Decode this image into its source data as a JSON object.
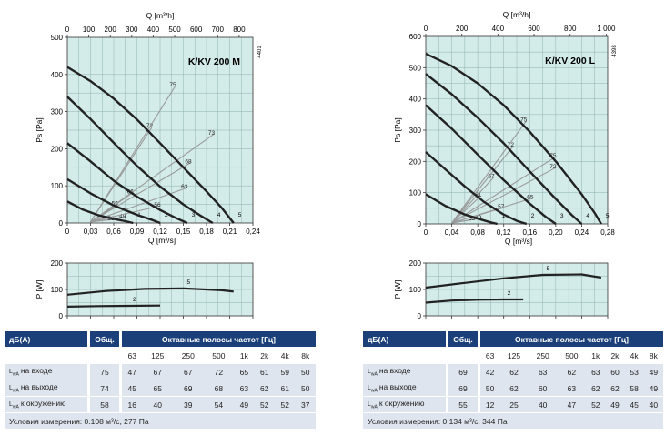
{
  "panels": [
    {
      "model": "K/KV 200 M",
      "code": "4401",
      "chart_data": {
        "type": "line",
        "top_axis_label": "Q [m³/h]",
        "top_axis_ticks": [
          "0",
          "100",
          "200",
          "300",
          "400",
          "500",
          "600",
          "700",
          "800"
        ],
        "top_axis_max": 864,
        "xlabel": "Q [m³/s]",
        "xlim": [
          0,
          0.24
        ],
        "xticks": [
          "0",
          "0,03",
          "0,06",
          "0,09",
          "0,12",
          "0,15",
          "0,18",
          "0,21",
          "0,24"
        ],
        "ylabel": "Ps [Pa]",
        "ylim": [
          0,
          500
        ],
        "yticks": [
          "0",
          "100",
          "200",
          "300",
          "400",
          "500"
        ],
        "grid": true,
        "background": "#d3ebe9",
        "series": [
          {
            "name": "1",
            "x": [
              0,
              0.02,
              0.04,
              0.06,
              0.075,
              0.085
            ],
            "y": [
              58,
              36,
              21,
              11,
              5,
              0
            ]
          },
          {
            "name": "2",
            "x": [
              0,
              0.03,
              0.06,
              0.09,
              0.11,
              0.12
            ],
            "y": [
              118,
              80,
              47,
              22,
              8,
              0
            ]
          },
          {
            "name": "3",
            "x": [
              0,
              0.03,
              0.06,
              0.09,
              0.12,
              0.14,
              0.155
            ],
            "y": [
              215,
              166,
              114,
              71,
              35,
              14,
              0
            ]
          },
          {
            "name": "4",
            "x": [
              0,
              0.03,
              0.06,
              0.09,
              0.12,
              0.15,
              0.172,
              0.188
            ],
            "y": [
              340,
              280,
              216,
              154,
              98,
              50,
              20,
              0
            ]
          },
          {
            "name": "5",
            "x": [
              0,
              0.03,
              0.06,
              0.09,
              0.12,
              0.15,
              0.18,
              0.2,
              0.215
            ],
            "y": [
              420,
              382,
              335,
              279,
              215,
              150,
              85,
              40,
              0
            ]
          }
        ],
        "efficiency_lines": [
          {
            "label": "49",
            "x": [
              0.03,
              0.075
            ],
            "y": [
              3,
              16
            ]
          },
          {
            "label": "53",
            "x": [
              0.03,
              0.06
            ],
            "y": [
              3,
              10
            ]
          },
          {
            "label": "56",
            "x": [
              0.03,
              0.12
            ],
            "y": [
              3,
              46
            ]
          },
          {
            "label": "59",
            "x": [
              0.03,
              0.065
            ],
            "y": [
              3,
              50
            ]
          },
          {
            "label": "63",
            "x": [
              0.03,
              0.155
            ],
            "y": [
              3,
              95
            ]
          },
          {
            "label": "66",
            "x": [
              0.03,
              0.085
            ],
            "y": [
              3,
              82
            ]
          },
          {
            "label": "68",
            "x": [
              0.03,
              0.16
            ],
            "y": [
              3,
              163
            ]
          },
          {
            "label": "72",
            "x": [
              0.03,
              0.11
            ],
            "y": [
              3,
              260
            ]
          },
          {
            "label": "73",
            "x": [
              0.03,
              0.19
            ],
            "y": [
              3,
              240
            ]
          },
          {
            "label": "75",
            "x": [
              0.03,
              0.14
            ],
            "y": [
              3,
              370
            ]
          }
        ]
      },
      "power_chart": {
        "type": "line",
        "ylabel": "P [W]",
        "ylim": [
          0,
          200
        ],
        "yticks": [
          "0",
          "100",
          "200"
        ],
        "xlim": [
          0,
          0.24
        ],
        "series": [
          {
            "name": "2",
            "x": [
              0,
              0.04,
              0.08,
              0.12
            ],
            "y": [
              35,
              37,
              38,
              39
            ]
          },
          {
            "name": "5",
            "x": [
              0,
              0.05,
              0.1,
              0.15,
              0.2,
              0.215
            ],
            "y": [
              80,
              94,
              102,
              104,
              97,
              92
            ]
          }
        ]
      },
      "table": {
        "title": "дБ(A)",
        "total": "Общ.",
        "bands_title": "Октавные полосы частот [Гц]",
        "bands": [
          "63",
          "125",
          "250",
          "500",
          "1k",
          "2k",
          "4k",
          "8k"
        ],
        "rows": [
          {
            "label": "на входе",
            "total": "75",
            "values": [
              "47",
              "67",
              "67",
              "72",
              "65",
              "61",
              "59",
              "50"
            ]
          },
          {
            "label": "на выходе",
            "total": "74",
            "values": [
              "45",
              "65",
              "69",
              "68",
              "63",
              "62",
              "61",
              "50"
            ]
          },
          {
            "label": "к окружению",
            "total": "58",
            "values": [
              "16",
              "40",
              "39",
              "54",
              "49",
              "52",
              "52",
              "37"
            ]
          }
        ],
        "conditions": "Условия измерения: 0.108 м³/с, 277 Па"
      }
    },
    {
      "model": "K/KV 200 L",
      "code": "4398",
      "chart_data": {
        "type": "line",
        "top_axis_label": "Q [m³/h]",
        "top_axis_ticks": [
          "0",
          "200",
          "400",
          "600",
          "800",
          "1 000"
        ],
        "top_axis_max": 1008,
        "xlabel": "Q [m³/s]",
        "xlim": [
          0,
          0.28
        ],
        "xticks": [
          "0",
          "0,04",
          "0,08",
          "0,12",
          "0,16",
          "0,20",
          "0,24",
          "0,28"
        ],
        "ylabel": "Ps [Pa]",
        "ylim": [
          0,
          600
        ],
        "yticks": [
          "0",
          "100",
          "200",
          "300",
          "400",
          "500",
          "600"
        ],
        "grid": true,
        "background": "#d3ebe9",
        "series": [
          {
            "name": "1",
            "x": [
              0,
              0.03,
              0.06,
              0.085,
              0.1,
              0.11
            ],
            "y": [
              95,
              58,
              30,
              14,
              5,
              0
            ]
          },
          {
            "name": "2",
            "x": [
              0,
              0.03,
              0.06,
              0.09,
              0.12,
              0.14,
              0.155
            ],
            "y": [
              230,
              175,
              120,
              70,
              30,
              10,
              0
            ]
          },
          {
            "name": "3",
            "x": [
              0,
              0.04,
              0.08,
              0.12,
              0.16,
              0.185,
              0.2
            ],
            "y": [
              380,
              305,
              222,
              140,
              65,
              22,
              0
            ]
          },
          {
            "name": "4",
            "x": [
              0,
              0.04,
              0.08,
              0.12,
              0.16,
              0.2,
              0.225,
              0.24
            ],
            "y": [
              480,
              415,
              340,
              258,
              168,
              80,
              28,
              0
            ]
          },
          {
            "name": "5",
            "x": [
              0,
              0.04,
              0.08,
              0.12,
              0.16,
              0.2,
              0.24,
              0.26,
              0.27
            ],
            "y": [
              545,
              505,
              450,
              380,
              295,
              200,
              95,
              35,
              0
            ]
          }
        ],
        "efficiency_lines": [
          {
            "label": "49",
            "x": [
              0.04,
              0.085
            ],
            "y": [
              3,
              18
            ]
          },
          {
            "label": "53",
            "x": [
              0.04,
              0.075
            ],
            "y": [
              3,
              15
            ]
          },
          {
            "label": "57",
            "x": [
              0.04,
              0.12
            ],
            "y": [
              3,
              52
            ]
          },
          {
            "label": "61",
            "x": [
              0.04,
              0.085
            ],
            "y": [
              3,
              90
            ]
          },
          {
            "label": "65",
            "x": [
              0.04,
              0.165
            ],
            "y": [
              3,
              83
            ]
          },
          {
            "label": "67",
            "x": [
              0.04,
              0.105
            ],
            "y": [
              3,
              150
            ]
          },
          {
            "label": "72",
            "x": [
              0.04,
              0.2
            ],
            "y": [
              3,
              180
            ]
          },
          {
            "label": "72",
            "x": [
              0.04,
              0.135
            ],
            "y": [
              3,
              250
            ]
          },
          {
            "label": "75",
            "x": [
              0.04,
              0.2
            ],
            "y": [
              3,
              215
            ]
          },
          {
            "label": "75",
            "x": [
              0.04,
              0.155
            ],
            "y": [
              3,
              330
            ]
          }
        ]
      },
      "power_chart": {
        "type": "line",
        "ylabel": "P [W]",
        "ylim": [
          0,
          200
        ],
        "yticks": [
          "0",
          "100",
          "200"
        ],
        "xlim": [
          0,
          0.28
        ],
        "series": [
          {
            "name": "2",
            "x": [
              0,
              0.04,
              0.08,
              0.12,
              0.15
            ],
            "y": [
              50,
              58,
              61,
              62,
              62
            ]
          },
          {
            "name": "5",
            "x": [
              0,
              0.06,
              0.12,
              0.18,
              0.24,
              0.27
            ],
            "y": [
              107,
              125,
              142,
              155,
              157,
              145
            ]
          }
        ]
      },
      "table": {
        "title": "дБ(A)",
        "total": "Общ.",
        "bands_title": "Октавные полосы частот [Гц]",
        "bands": [
          "63",
          "125",
          "250",
          "500",
          "1k",
          "2k",
          "4k",
          "8k"
        ],
        "rows": [
          {
            "label": "на входе",
            "total": "69",
            "values": [
              "42",
              "62",
              "63",
              "62",
              "63",
              "60",
              "53",
              "49"
            ]
          },
          {
            "label": "на выходе",
            "total": "69",
            "values": [
              "50",
              "62",
              "60",
              "63",
              "62",
              "62",
              "58",
              "49"
            ]
          },
          {
            "label": "к окружению",
            "total": "55",
            "values": [
              "12",
              "25",
              "40",
              "47",
              "52",
              "49",
              "45",
              "40"
            ]
          }
        ],
        "conditions": "Условия измерения: 0.134 м³/с, 344 Па"
      }
    }
  ]
}
